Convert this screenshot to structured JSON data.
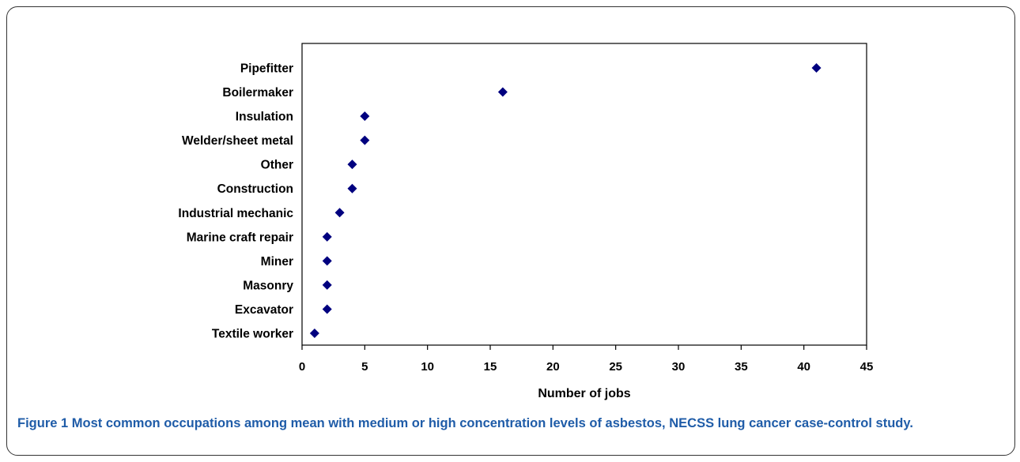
{
  "chart_data": {
    "type": "scatter",
    "marker": "diamond",
    "marker_color": "#00007f",
    "categories": [
      "Pipefitter",
      "Boilermaker",
      "Insulation",
      "Welder/sheet metal",
      "Other",
      "Construction",
      "Industrial mechanic",
      "Marine craft repair",
      "Miner",
      "Masonry",
      "Excavator",
      "Textile worker"
    ],
    "values": [
      41,
      16,
      5,
      5,
      4,
      4,
      3,
      2,
      2,
      2,
      2,
      1
    ],
    "xlabel": "Number of jobs",
    "xlim": [
      0,
      45
    ],
    "xticks": [
      0,
      5,
      10,
      15,
      20,
      25,
      30,
      35,
      40,
      45
    ],
    "grid": false
  },
  "caption": {
    "label": "Figure 1",
    "text": "Most common occupations among mean with medium or high concentration levels of asbestos, NECSS lung cancer case-control study."
  }
}
